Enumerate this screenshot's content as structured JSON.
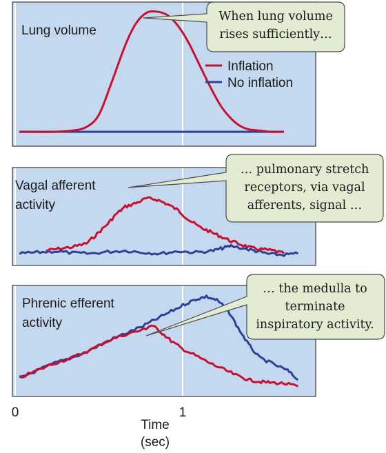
{
  "chart_data": [
    {
      "type": "line",
      "panel": "lung-volume",
      "title": "Lung volume",
      "callout": [
        "When lung volume",
        "rises sufficiently…"
      ],
      "series": [
        {
          "name": "Inflation",
          "color": "#c8102e",
          "x": [
            0.0,
            0.2,
            0.3,
            0.38,
            0.45,
            0.52,
            0.6,
            0.66,
            0.72,
            0.78,
            0.84,
            0.9,
            0.96,
            1.02,
            1.08,
            1.14,
            1.2,
            1.25,
            1.3,
            1.36,
            1.42,
            1.5
          ],
          "y": [
            0.0,
            0.0,
            0.01,
            0.04,
            0.14,
            0.4,
            0.72,
            0.9,
            0.99,
            1.0,
            0.97,
            0.88,
            0.74,
            0.56,
            0.38,
            0.22,
            0.11,
            0.05,
            0.02,
            0.01,
            0.0,
            0.0
          ]
        },
        {
          "name": "No inflation",
          "color": "#2e3f96",
          "x": [
            0.0,
            1.5
          ],
          "y": [
            0.0,
            0.0
          ]
        }
      ],
      "xlim": [
        -0.04,
        1.68
      ],
      "ylim": [
        -0.12,
        1.08
      ]
    },
    {
      "type": "line",
      "panel": "vagal-afferent",
      "title": "Vagal afferent activity",
      "callout": [
        "… pulmonary stretch",
        "receptors, via vagal",
        "afferents, signal …"
      ],
      "series": [
        {
          "name": "Inflation",
          "color": "#c8102e",
          "x": [
            0.15,
            0.22,
            0.3,
            0.38,
            0.44,
            0.5,
            0.55,
            0.6,
            0.66,
            0.72,
            0.78,
            0.84,
            0.9,
            0.96,
            1.02,
            1.08,
            1.14,
            1.2,
            1.26,
            1.32,
            1.38,
            1.44,
            1.5
          ],
          "y": [
            0.1,
            0.13,
            0.16,
            0.22,
            0.38,
            0.55,
            0.72,
            0.84,
            0.9,
            0.98,
            0.96,
            0.88,
            0.78,
            0.62,
            0.5,
            0.42,
            0.34,
            0.26,
            0.2,
            0.14,
            0.12,
            0.1,
            0.05
          ]
        },
        {
          "name": "No inflation",
          "color": "#2e3f96",
          "x": [
            0.0,
            0.1,
            0.2,
            0.3,
            0.4,
            0.5,
            0.6,
            0.7,
            0.8,
            0.9,
            1.0,
            1.1,
            1.15,
            1.2,
            1.3,
            1.36,
            1.42,
            1.5,
            1.58
          ],
          "y": [
            0.05,
            0.07,
            0.09,
            0.06,
            0.05,
            0.08,
            0.1,
            0.07,
            0.05,
            0.09,
            0.07,
            0.1,
            0.14,
            0.18,
            0.12,
            0.08,
            0.04,
            0.03,
            0.05
          ]
        }
      ],
      "xlim": [
        -0.04,
        1.68
      ],
      "ylim": [
        -0.15,
        1.5
      ]
    },
    {
      "type": "line",
      "panel": "phrenic-efferent",
      "title": "Phrenic efferent activity",
      "callout": [
        "… the medulla to",
        "terminate",
        "inspiratory activity."
      ],
      "series": [
        {
          "name": "Inflation",
          "color": "#c8102e",
          "x": [
            0.0,
            0.1,
            0.2,
            0.3,
            0.4,
            0.5,
            0.6,
            0.7,
            0.75,
            0.8,
            0.86,
            0.92,
            1.0,
            1.08,
            1.16,
            1.24,
            1.3,
            1.36,
            1.42,
            1.5,
            1.58
          ],
          "y": [
            0.1,
            0.18,
            0.26,
            0.32,
            0.4,
            0.5,
            0.57,
            0.62,
            0.67,
            0.6,
            0.5,
            0.42,
            0.34,
            0.26,
            0.19,
            0.12,
            0.08,
            0.06,
            0.05,
            0.04,
            0.01
          ]
        },
        {
          "name": "No inflation",
          "color": "#2e3f96",
          "x": [
            0.0,
            0.1,
            0.2,
            0.3,
            0.4,
            0.5,
            0.6,
            0.7,
            0.78,
            0.86,
            0.94,
            1.0,
            1.06,
            1.12,
            1.18,
            1.24,
            1.3,
            1.36,
            1.44,
            1.52,
            1.58
          ],
          "y": [
            0.1,
            0.18,
            0.26,
            0.32,
            0.4,
            0.5,
            0.58,
            0.66,
            0.74,
            0.82,
            0.9,
            0.95,
            0.98,
            0.94,
            0.84,
            0.64,
            0.46,
            0.32,
            0.25,
            0.18,
            0.08
          ]
        }
      ],
      "xlim": [
        -0.04,
        1.68
      ],
      "ylim": [
        -0.1,
        1.1
      ]
    }
  ],
  "legend": {
    "items": [
      {
        "label": "Inflation",
        "color": "#c8102e"
      },
      {
        "label": "No inflation",
        "color": "#2e3f96"
      }
    ],
    "placement": "top-right of first panel"
  },
  "x_axis": {
    "ticks": [
      {
        "value": 0,
        "label": "0"
      },
      {
        "value": 1,
        "label": "1"
      }
    ],
    "label_line1": "Time",
    "label_line2": "(sec)"
  },
  "colors": {
    "panel_bg": "#c4d9ef",
    "panel_border": "#3a3a3a",
    "callout_bg": "#e2ecd2",
    "callout_border": "#4a4a4a"
  }
}
